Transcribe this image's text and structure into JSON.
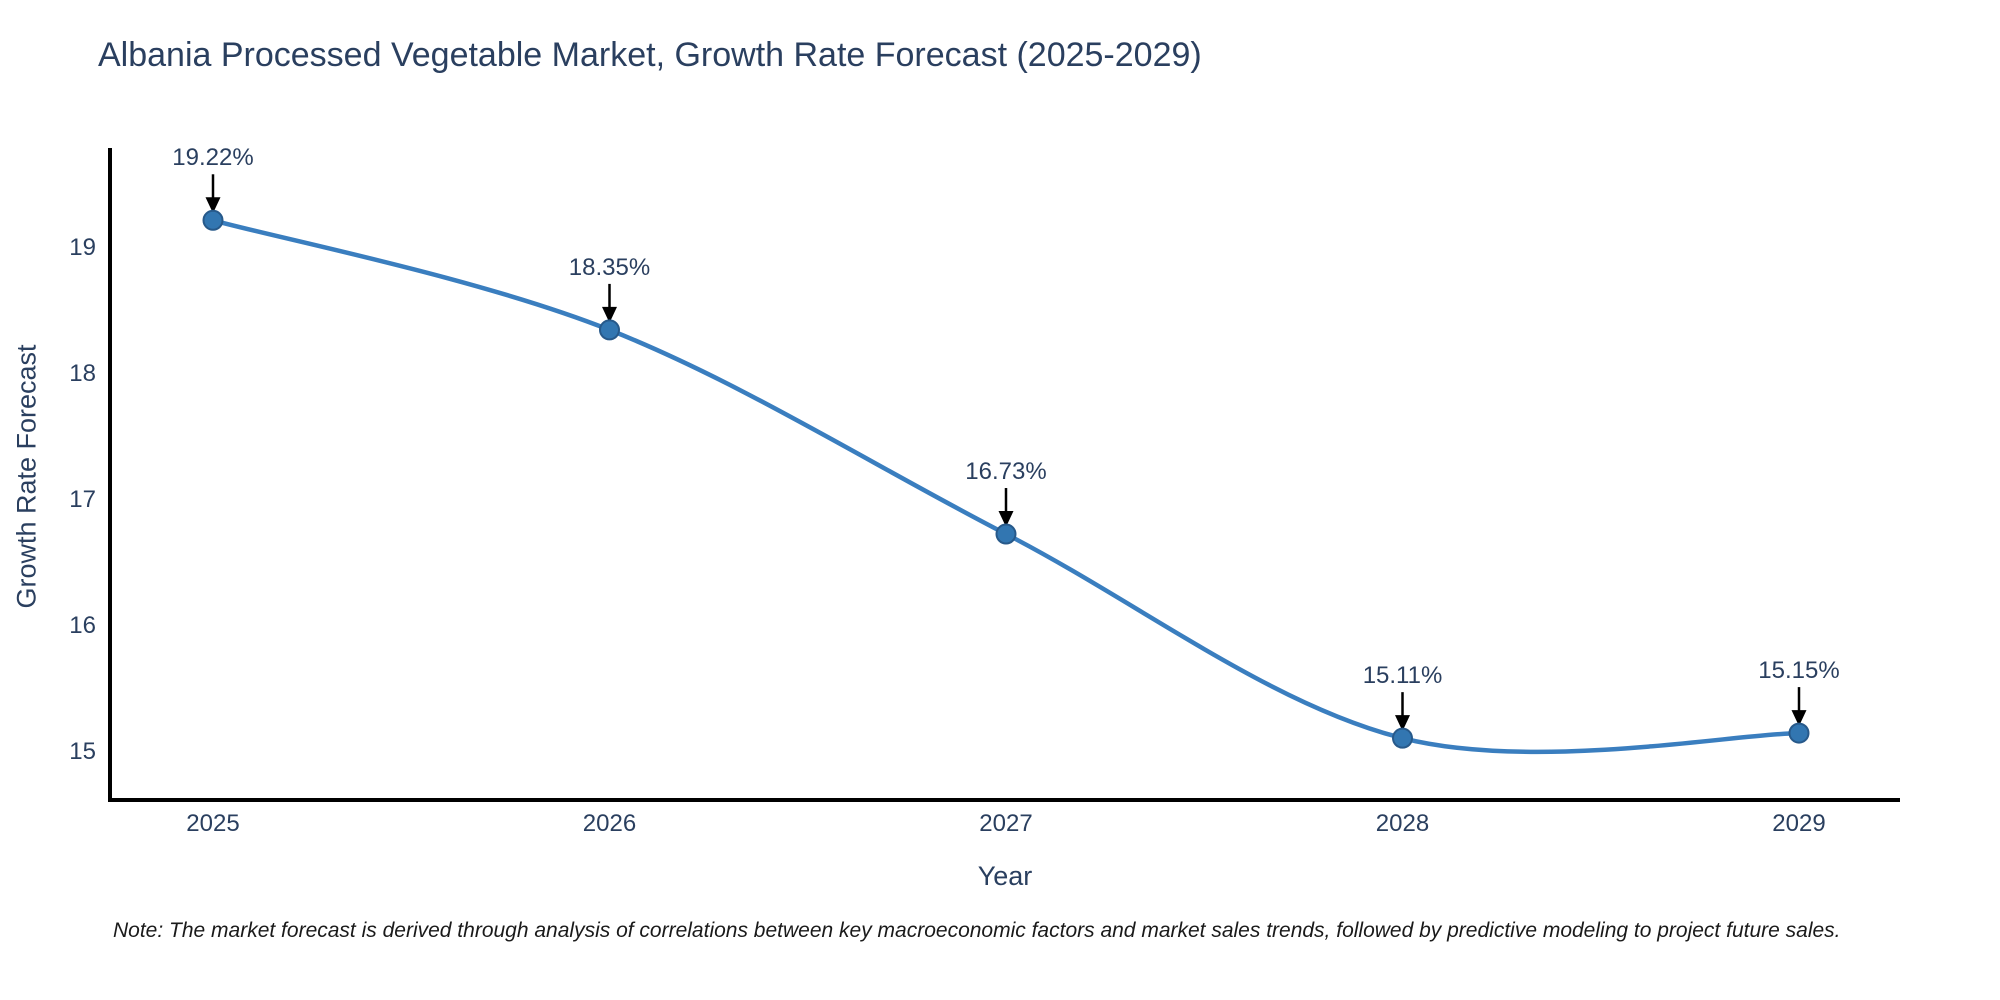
{
  "chart_data": {
    "type": "line",
    "title": "Albania Processed Vegetable Market, Growth Rate Forecast (2025-2029)",
    "xlabel": "Year",
    "ylabel": "Growth Rate Forecast",
    "categories": [
      2025,
      2026,
      2027,
      2028,
      2029
    ],
    "values": [
      19.22,
      18.35,
      16.73,
      15.11,
      15.15
    ],
    "point_labels": [
      "19.22%",
      "18.35%",
      "16.73%",
      "15.11%",
      "15.15%"
    ],
    "yticks": [
      15,
      16,
      17,
      18,
      19
    ],
    "ylim": [
      14.6,
      19.8
    ],
    "xlim": [
      2024.74,
      2029.25
    ],
    "line_shape": "spline",
    "grid": "off",
    "legend": "none",
    "colors": {
      "line": "#3a7ebf",
      "marker_fill": "#3276b1",
      "marker_edge": "#27598a",
      "axis_line": "#000000",
      "tick_text": "#2a3f5f",
      "title_text": "#2a3f5f",
      "annotation_text": "#2a3f5f",
      "arrow": "#000000",
      "note_text": "#1a1a1a"
    },
    "note": "Note: The market forecast is derived through analysis of correlations between key macroeconomic factors and market sales trends, followed by predictive modeling to project future sales."
  }
}
